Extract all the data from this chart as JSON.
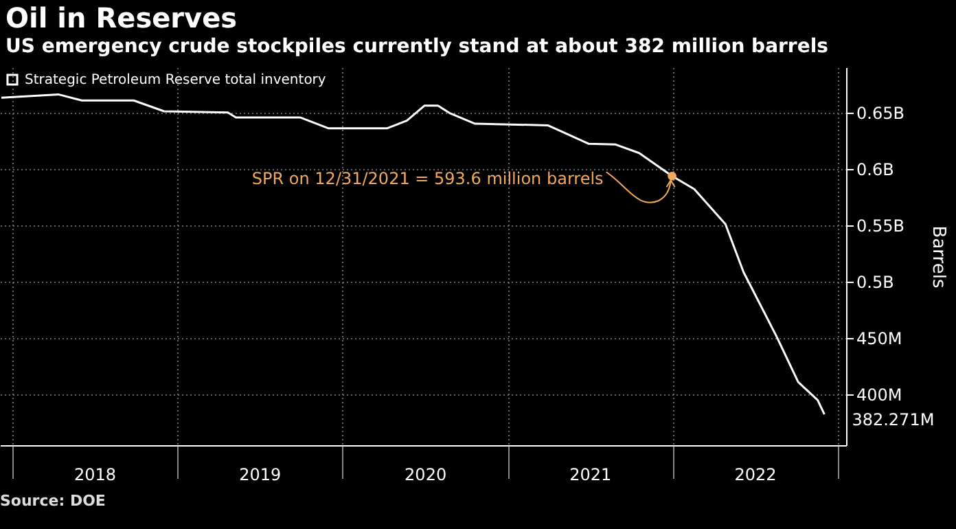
{
  "chart_data": {
    "type": "line",
    "title": "Oil in Reserves",
    "subtitle": "US emergency crude stockpiles currently stand at about 382 million barrels",
    "ylabel": "Barrels",
    "x": [
      "2017-12-08",
      "2018-04-13",
      "2018-06-04",
      "2018-09-27",
      "2018-12-03",
      "2019-04-23",
      "2019-05-11",
      "2019-10-01",
      "2019-12-01",
      "2020-04-10",
      "2020-05-23",
      "2020-07-01",
      "2020-07-31",
      "2020-08-25",
      "2020-10-21",
      "2021-03-31",
      "2021-06-29",
      "2021-08-28",
      "2021-10-19",
      "2021-12-31",
      "2022-02-18",
      "2022-04-28",
      "2022-06-07",
      "2022-08-19",
      "2022-10-06",
      "2022-11-18",
      "2022-12-03"
    ],
    "series": [
      {
        "name": "Strategic Petroleum Reserve total inventory",
        "color": "#ffffff",
        "values": [
          663000000,
          666000000,
          660600000,
          660600000,
          651000000,
          650000000,
          645500000,
          645500000,
          636000000,
          636000000,
          642700000,
          656000000,
          656000000,
          649600000,
          640000000,
          638600000,
          622300000,
          621600000,
          614000000,
          593600000,
          582000000,
          551000000,
          508500000,
          451500000,
          411000000,
          395000000,
          382271000
        ],
        "value_labels": [
          null,
          null,
          null,
          null,
          null,
          null,
          null,
          null,
          null,
          null,
          null,
          null,
          null,
          null,
          null,
          null,
          null,
          null,
          null,
          null,
          null,
          null,
          null,
          null,
          null,
          null,
          "382.271M"
        ]
      }
    ],
    "xlim": [
      "2017-12-05",
      "2023-01-20"
    ],
    "xticks": [
      {
        "value": "2018-01-01",
        "label": null
      },
      {
        "value": "2018-07-02",
        "label": "2018"
      },
      {
        "value": "2019-01-01",
        "label": null
      },
      {
        "value": "2019-07-02",
        "label": "2019"
      },
      {
        "value": "2020-01-01",
        "label": null
      },
      {
        "value": "2020-07-02",
        "label": "2020"
      },
      {
        "value": "2021-01-01",
        "label": null
      },
      {
        "value": "2021-07-02",
        "label": "2021"
      },
      {
        "value": "2022-01-01",
        "label": null
      },
      {
        "value": "2022-07-02",
        "label": "2022"
      },
      {
        "value": "2023-01-01",
        "label": null
      }
    ],
    "ylim": [
      355000000,
      690000000
    ],
    "yticks": [
      {
        "value": 400000000,
        "label": "400M"
      },
      {
        "value": 450000000,
        "label": "450M"
      },
      {
        "value": 500000000,
        "label": "0.5B"
      },
      {
        "value": 550000000,
        "label": "0.55B"
      },
      {
        "value": 600000000,
        "label": "0.6B"
      },
      {
        "value": 650000000,
        "label": "0.65B"
      }
    ],
    "annotations": [
      {
        "text": "SPR on 12/31/2021 = 593.6 million barrels",
        "x": "2021-12-31",
        "y": 593600000
      },
      "Source: DOE"
    ],
    "grid": true,
    "legend": "top left",
    "marker": "none",
    "line_style": "solid"
  }
}
